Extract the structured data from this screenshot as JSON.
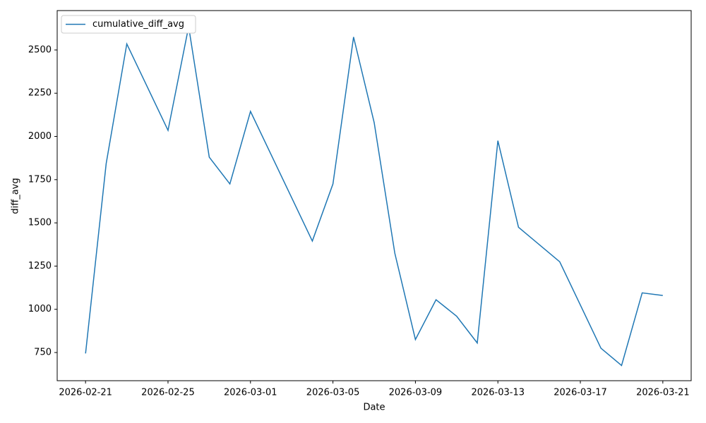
{
  "chart_data": {
    "type": "line",
    "x_label": "Date",
    "y_label": "diff_avg",
    "x": [
      "2026-02-21",
      "2026-02-22",
      "2026-02-23",
      "2026-02-24",
      "2026-02-25",
      "2026-02-26",
      "2026-02-27",
      "2026-02-28",
      "2026-03-01",
      "2026-03-02",
      "2026-03-03",
      "2026-03-04",
      "2026-03-05",
      "2026-03-06",
      "2026-03-07",
      "2026-03-08",
      "2026-03-09",
      "2026-03-10",
      "2026-03-11",
      "2026-03-12",
      "2026-03-13",
      "2026-03-14",
      "2026-03-15",
      "2026-03-16",
      "2026-03-17",
      "2026-03-18",
      "2026-03-19",
      "2026-03-20",
      "2026-03-21"
    ],
    "series": [
      {
        "name": "cumulative_diff_avg",
        "color": "#1f77b4",
        "values": [
          745,
          1843,
          2535,
          2285,
          2035,
          2635,
          1880,
          1725,
          2145,
          1895,
          1645,
          1395,
          1725,
          2575,
          2080,
          1325,
          825,
          1055,
          960,
          805,
          1975,
          1475,
          1375,
          1275,
          1025,
          775,
          675,
          1095,
          1080
        ]
      }
    ],
    "xlim": [
      "2026-02-19T15:00",
      "2026-03-22T09:00"
    ],
    "xticks": [
      "2026-02-21",
      "2026-02-25",
      "2026-03-01",
      "2026-03-05",
      "2026-03-09",
      "2026-03-13",
      "2026-03-17",
      "2026-03-21"
    ],
    "ylim": [
      587,
      2728
    ],
    "yticks": [
      750,
      1000,
      1250,
      1500,
      1750,
      2000,
      2250,
      2500
    ],
    "grid": false,
    "legend": "upper left"
  }
}
